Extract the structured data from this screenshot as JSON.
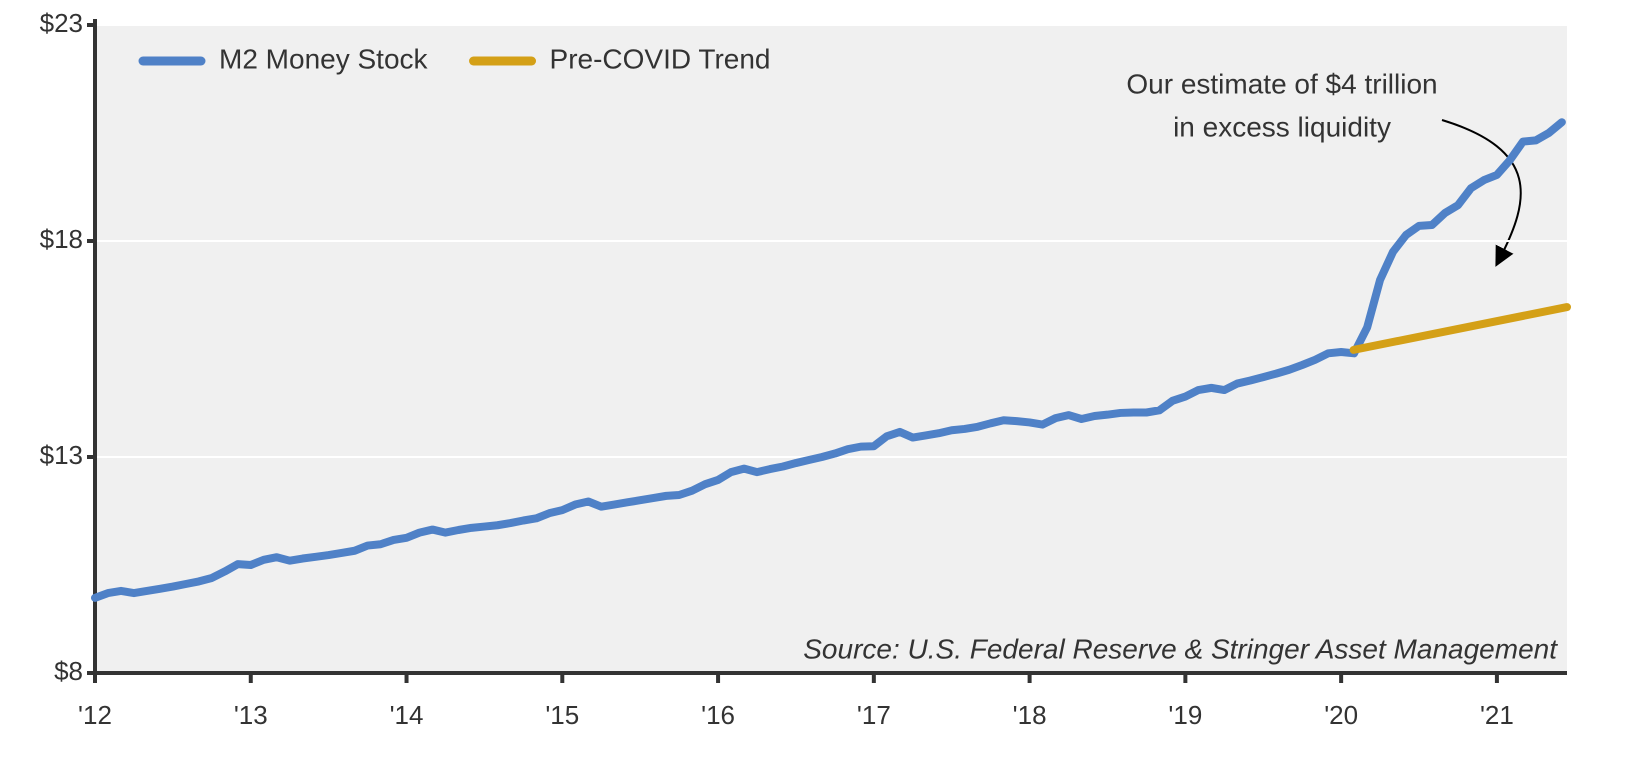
{
  "chart_data": {
    "type": "line",
    "series": [
      {
        "name": "M2 Money Stock",
        "color": "#4f81c7",
        "x": [
          2012,
          2012.083,
          2012.167,
          2012.25,
          2012.333,
          2012.417,
          2012.5,
          2012.583,
          2012.667,
          2012.75,
          2012.833,
          2012.917,
          2013,
          2013.083,
          2013.167,
          2013.25,
          2013.333,
          2013.417,
          2013.5,
          2013.583,
          2013.667,
          2013.75,
          2013.833,
          2013.917,
          2014,
          2014.083,
          2014.167,
          2014.25,
          2014.333,
          2014.417,
          2014.5,
          2014.583,
          2014.667,
          2014.75,
          2014.833,
          2014.917,
          2015,
          2015.083,
          2015.167,
          2015.25,
          2015.333,
          2015.417,
          2015.5,
          2015.583,
          2015.667,
          2015.75,
          2015.833,
          2015.917,
          2016,
          2016.083,
          2016.167,
          2016.25,
          2016.333,
          2016.417,
          2016.5,
          2016.583,
          2016.667,
          2016.75,
          2016.833,
          2016.917,
          2017,
          2017.083,
          2017.167,
          2017.25,
          2017.333,
          2017.417,
          2017.5,
          2017.583,
          2017.667,
          2017.75,
          2017.833,
          2017.917,
          2018,
          2018.083,
          2018.167,
          2018.25,
          2018.333,
          2018.417,
          2018.5,
          2018.583,
          2018.667,
          2018.75,
          2018.833,
          2018.917,
          2019,
          2019.083,
          2019.167,
          2019.25,
          2019.333,
          2019.417,
          2019.5,
          2019.583,
          2019.667,
          2019.75,
          2019.833,
          2019.917,
          2020,
          2020.083,
          2020.167,
          2020.25,
          2020.333,
          2020.417,
          2020.5,
          2020.583,
          2020.667,
          2020.75,
          2020.833,
          2020.917,
          2021,
          2021.083,
          2021.167,
          2021.25,
          2021.333,
          2021.417
        ],
        "values": [
          9.74,
          9.85,
          9.9,
          9.85,
          9.9,
          9.95,
          10.0,
          10.06,
          10.12,
          10.2,
          10.35,
          10.52,
          10.5,
          10.62,
          10.68,
          10.6,
          10.65,
          10.69,
          10.73,
          10.78,
          10.83,
          10.95,
          10.98,
          11.08,
          11.13,
          11.25,
          11.32,
          11.25,
          11.31,
          11.36,
          11.39,
          11.42,
          11.47,
          11.53,
          11.58,
          11.7,
          11.77,
          11.9,
          11.97,
          11.85,
          11.9,
          11.95,
          12.0,
          12.05,
          12.1,
          12.12,
          12.22,
          12.37,
          12.47,
          12.65,
          12.73,
          12.65,
          12.72,
          12.78,
          12.86,
          12.93,
          13.0,
          13.08,
          13.18,
          13.24,
          13.25,
          13.48,
          13.58,
          13.45,
          13.5,
          13.55,
          13.62,
          13.65,
          13.7,
          13.78,
          13.85,
          13.83,
          13.8,
          13.75,
          13.9,
          13.97,
          13.88,
          13.95,
          13.98,
          14.02,
          14.03,
          14.03,
          14.08,
          14.3,
          14.4,
          14.55,
          14.6,
          14.55,
          14.7,
          14.77,
          14.85,
          14.93,
          15.02,
          15.13,
          15.25,
          15.4,
          15.43,
          15.4,
          16.0,
          17.1,
          17.75,
          18.14,
          18.35,
          18.37,
          18.65,
          18.83,
          19.22,
          19.41,
          19.53,
          19.87,
          20.3,
          20.33,
          20.5,
          20.75
        ]
      },
      {
        "name": "Pre-COVID Trend",
        "color": "#d4a017",
        "x": [
          2020.08,
          2021.45
        ],
        "values": [
          15.48,
          16.47
        ]
      }
    ],
    "xlim": [
      2012,
      2021.45
    ],
    "xticks": [
      {
        "value": 2012,
        "label": "'12"
      },
      {
        "value": 2013,
        "label": "'13"
      },
      {
        "value": 2014,
        "label": "'14"
      },
      {
        "value": 2015,
        "label": "'15"
      },
      {
        "value": 2016,
        "label": "'16"
      },
      {
        "value": 2017,
        "label": "'17"
      },
      {
        "value": 2018,
        "label": "'18"
      },
      {
        "value": 2019,
        "label": "'19"
      },
      {
        "value": 2020,
        "label": "'20"
      },
      {
        "value": 2021,
        "label": "'21"
      }
    ],
    "ylim": [
      8,
      23
    ],
    "yticks": [
      {
        "value": 8,
        "label": "$8"
      },
      {
        "value": 13,
        "label": "$13"
      },
      {
        "value": 18,
        "label": "$18"
      },
      {
        "value": 23,
        "label": "$23"
      }
    ],
    "grid": true,
    "legend": "top-left",
    "annotation": [
      "Our estimate of $4 trillion",
      "in excess liquidity"
    ],
    "source": "Source: U.S. Federal Reserve & Stringer Asset Management"
  }
}
